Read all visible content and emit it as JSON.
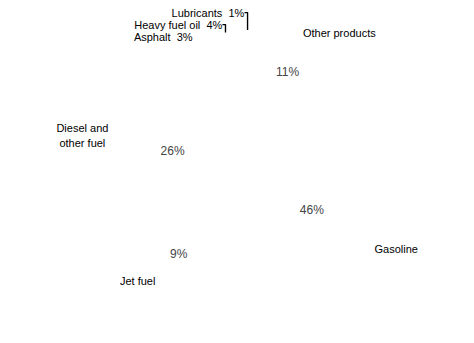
{
  "chart_data": {
    "type": "pie",
    "categories": [
      "Other products",
      "Gasoline",
      "Jet fuel",
      "Diesel and\nother fuel",
      "Asphalt  3%",
      "Heavy fuel oil  4%",
      "Lubricants  1%"
    ],
    "values": [
      11,
      46,
      9,
      26,
      3,
      4,
      1
    ],
    "value_labels": [
      "11%",
      "46%",
      "9%",
      "26%",
      null,
      null,
      null
    ],
    "data_labels": true
  }
}
